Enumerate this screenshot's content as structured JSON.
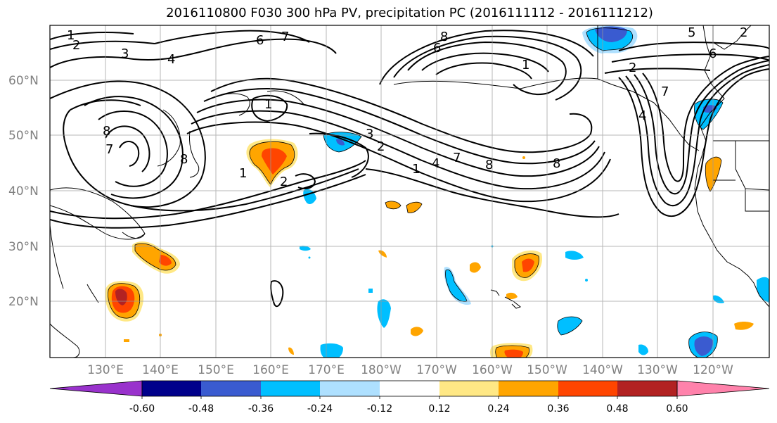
{
  "title": "2016110800 F030 300 hPa PV, precipitation PC (2016111112 - 2016111212)",
  "latitude_labels": [
    "60°N",
    "50°N",
    "40°N",
    "30°N",
    "20°N"
  ],
  "longitude_labels": [
    "130°E",
    "140°E",
    "150°E",
    "160°E",
    "170°E",
    "180°W",
    "170°W",
    "160°W",
    "150°W",
    "140°W",
    "130°W",
    "120°W"
  ],
  "colorbar": {
    "tick_labels": [
      "-0.60",
      "-0.48",
      "-0.36",
      "-0.24",
      "-0.12",
      "0.12",
      "0.24",
      "0.36",
      "0.48",
      "0.60"
    ],
    "colors": [
      "#9932cc",
      "#00008b",
      "#3a5bd0",
      "#00bfff",
      "#aee0ff",
      "#ffffff",
      "#ffe885",
      "#ffa500",
      "#ff4500",
      "#b22222",
      "#ff82ab"
    ]
  },
  "contour_labels": [
    "1",
    "2",
    "3",
    "4",
    "6",
    "7",
    "8",
    "5",
    "6",
    "2",
    "1",
    "8",
    "7",
    "2",
    "3",
    "1",
    "4",
    "7",
    "8",
    "8",
    "1",
    "2",
    "1",
    "2",
    "6",
    "4",
    "7",
    "8"
  ]
}
